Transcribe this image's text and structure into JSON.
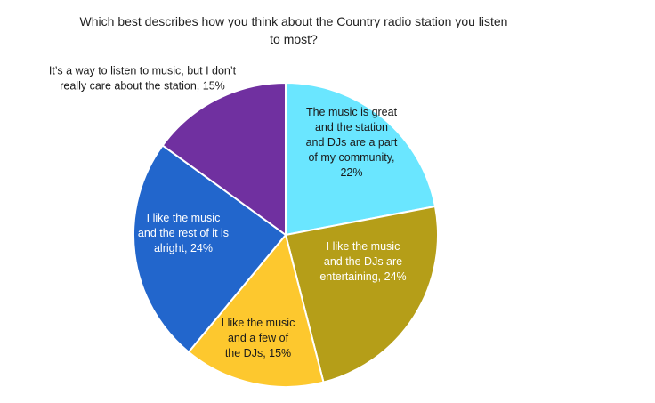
{
  "chart_data": {
    "type": "pie",
    "title_lines": [
      "Which best describes how you think about the Country radio station you listen",
      "to most?"
    ],
    "slices": [
      {
        "label_lines": [
          "The music is great",
          "and the station",
          "and DJs are a part",
          "of my community,",
          "22%"
        ],
        "value": 22,
        "color": "#6AE6FF",
        "text_color": "#1a1a1a"
      },
      {
        "label_lines": [
          "I like the music",
          "and the DJs are",
          "entertaining, 24%"
        ],
        "value": 24,
        "color": "#B59E18",
        "text_color": "#ffffff"
      },
      {
        "label_lines": [
          "I like the music",
          "and a few of",
          "the DJs, 15%"
        ],
        "value": 15,
        "color": "#FDC82E",
        "text_color": "#1a1a1a"
      },
      {
        "label_lines": [
          "I like the music",
          "and the rest of it is",
          "alright, 24%"
        ],
        "value": 24,
        "color": "#2266CC",
        "text_color": "#ffffff"
      },
      {
        "label_lines": [
          "It’s a way to listen to music, but I don’t",
          "really care about the station, 15%"
        ],
        "value": 15,
        "color": "#7030A0",
        "text_color": "#1a1a1a"
      }
    ]
  }
}
